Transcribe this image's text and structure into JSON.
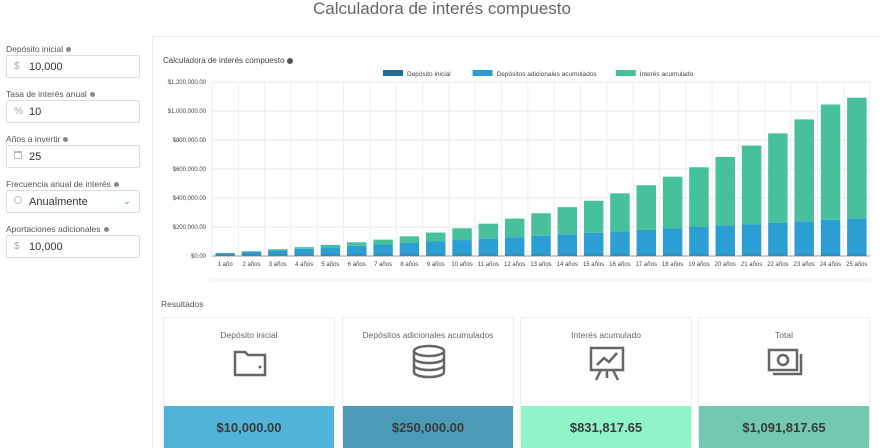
{
  "page": {
    "title": "Calculadora de interés compuesto"
  },
  "form": {
    "initial_deposit": {
      "label": "Depósito inicial",
      "prefix": "$",
      "value": "10,000"
    },
    "interest_rate": {
      "label": "Tasa de interés anual",
      "prefix": "%",
      "value": "10"
    },
    "years": {
      "label": "Años a invertir",
      "icon": "calendar-icon",
      "value": "25"
    },
    "frequency": {
      "label": "Frecuencia anual de interés",
      "icon": "clock-icon",
      "value": "Anualmente"
    },
    "additional": {
      "label": "Aportaciones adicionales",
      "prefix": "$",
      "value": "10,000"
    }
  },
  "chart_section": {
    "title": "Calculadora de interés compuesto"
  },
  "chart_data": {
    "type": "bar",
    "stacked": true,
    "categories": [
      "1 año",
      "2 años",
      "3 años",
      "4 años",
      "5 años",
      "6 años",
      "7 años",
      "8 años",
      "9 años",
      "10 años",
      "11 años",
      "12 años",
      "13 años",
      "14 años",
      "15 años",
      "16 años",
      "17 años",
      "18 años",
      "19 años",
      "20 años",
      "21 años",
      "22 años",
      "23 años",
      "24 años",
      "25 años"
    ],
    "series": [
      {
        "name": "Depósito inicial",
        "color": "#1f6f98",
        "values": [
          10000,
          10000,
          10000,
          10000,
          10000,
          10000,
          10000,
          10000,
          10000,
          10000,
          10000,
          10000,
          10000,
          10000,
          10000,
          10000,
          10000,
          10000,
          10000,
          10000,
          10000,
          10000,
          10000,
          10000,
          10000
        ]
      },
      {
        "name": "Depósitos adicionales acumulados",
        "color": "#2b9fd3",
        "values": [
          10000,
          20000,
          30000,
          40000,
          50000,
          60000,
          70000,
          80000,
          90000,
          100000,
          110000,
          120000,
          130000,
          140000,
          150000,
          160000,
          170000,
          180000,
          190000,
          200000,
          210000,
          220000,
          230000,
          240000,
          250000
        ]
      },
      {
        "name": "Interés acumulado",
        "color": "#47c09c",
        "values": [
          1000,
          3100,
          6410,
          11051,
          16156,
          24772,
          32949,
          45744,
          61818,
          81100,
          103000,
          128000,
          155000,
          187000,
          221000,
          262000,
          308000,
          357000,
          412000,
          473000,
          542000,
          616000,
          702000,
          795000,
          831818
        ]
      }
    ],
    "yticks": [
      "$0.00",
      "$200,000.00",
      "$400,000.00",
      "$600,000.00",
      "$800,000.00",
      "$1,000,000.00",
      "$1,200,000.00"
    ],
    "ylim": [
      0,
      1200000
    ],
    "grid": true,
    "legend": "top-center"
  },
  "results": {
    "title": "Resultados",
    "cards": [
      {
        "label": "Depósito inicial",
        "icon": "wallet-icon",
        "value": "$10,000.00",
        "color": "#4fb3da"
      },
      {
        "label": "Depósitos adicionales acumulados",
        "icon": "coins-icon",
        "value": "$250,000.00",
        "color": "#4a9ab8"
      },
      {
        "label": "Interés acumulado",
        "icon": "chart-board-icon",
        "value": "$831,817.65",
        "color": "#8ff5c9"
      },
      {
        "label": "Total",
        "icon": "banknote-icon",
        "value": "$1,091,817.65",
        "color": "#72c9b0"
      }
    ]
  }
}
